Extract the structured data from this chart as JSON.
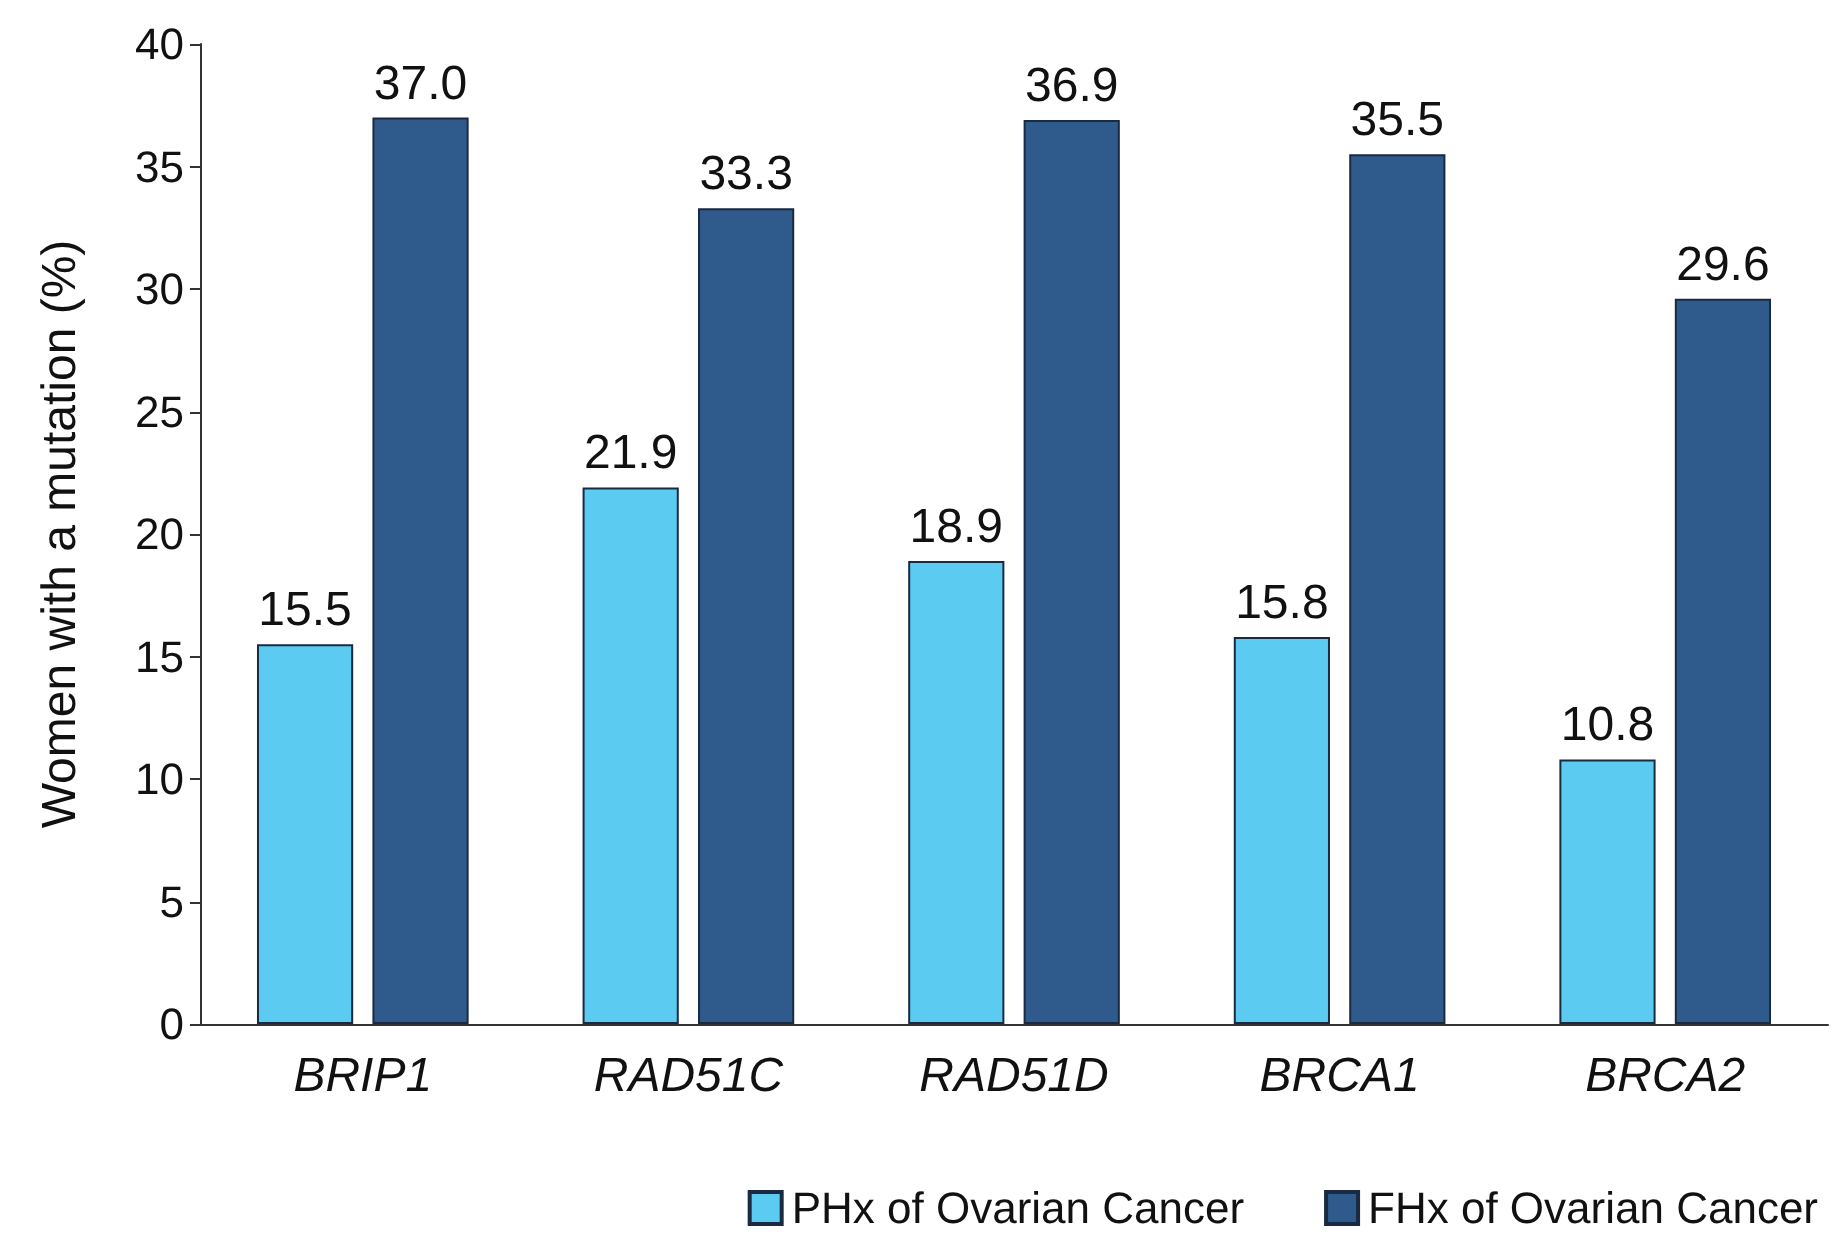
{
  "chart_data": {
    "type": "bar",
    "ylabel": "Women with a mutation (%)",
    "categories": [
      "BRIP1",
      "RAD51C",
      "RAD51D",
      "BRCA1",
      "BRCA2"
    ],
    "series": [
      {
        "name": "PHx of Ovarian Cancer",
        "color": "#5ccbf2",
        "values": [
          15.5,
          21.9,
          18.9,
          15.8,
          10.8
        ],
        "value_labels": [
          "15.5",
          "21.9",
          "18.9",
          "15.8",
          "10.8"
        ]
      },
      {
        "name": "FHx of Ovarian Cancer",
        "color": "#2f5a8c",
        "values": [
          37.0,
          33.3,
          36.9,
          35.5,
          29.6
        ],
        "value_labels": [
          "37.0",
          "33.3",
          "36.9",
          "35.5",
          "29.6"
        ]
      }
    ],
    "ylim": [
      0,
      40
    ],
    "yticks": [
      0,
      5,
      10,
      15,
      20,
      25,
      30,
      35,
      40
    ],
    "grid": false,
    "legend": "bottom"
  }
}
